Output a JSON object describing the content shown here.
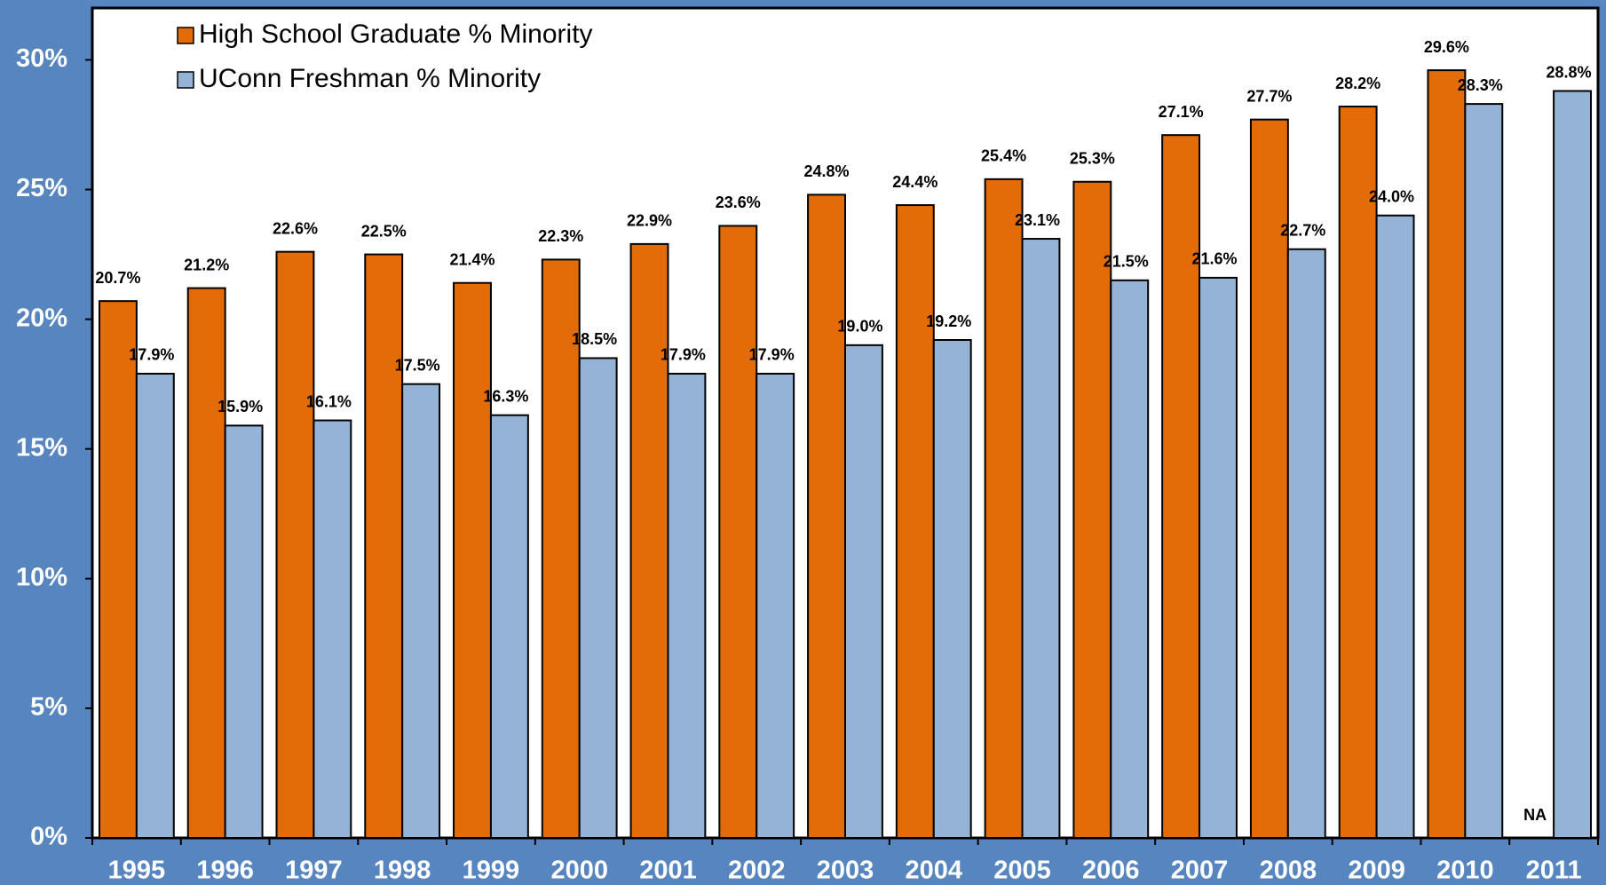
{
  "chart_data": {
    "type": "bar",
    "categories": [
      "1995",
      "1996",
      "1997",
      "1998",
      "1999",
      "2000",
      "2001",
      "2002",
      "2003",
      "2004",
      "2005",
      "2006",
      "2007",
      "2008",
      "2009",
      "2010",
      "2011"
    ],
    "series": [
      {
        "name": "High School Graduate % Minority",
        "color": "#e36c09",
        "values": [
          20.7,
          21.2,
          22.6,
          22.5,
          21.4,
          22.3,
          22.9,
          23.6,
          24.8,
          24.4,
          25.4,
          25.3,
          27.1,
          27.7,
          28.2,
          29.6,
          null
        ],
        "value_labels": [
          "20.7%",
          "21.2%",
          "22.6%",
          "22.5%",
          "21.4%",
          "22.3%",
          "22.9%",
          "23.6%",
          "24.8%",
          "24.4%",
          "25.4%",
          "25.3%",
          "27.1%",
          "27.7%",
          "28.2%",
          "29.6%",
          "NA"
        ]
      },
      {
        "name": "UConn Freshman % Minority",
        "color": "#95b3d7",
        "values": [
          17.9,
          15.9,
          16.1,
          17.5,
          16.3,
          18.5,
          17.9,
          17.9,
          19.0,
          19.2,
          23.1,
          21.5,
          21.6,
          22.7,
          24.0,
          28.3,
          28.8
        ],
        "value_labels": [
          "17.9%",
          "15.9%",
          "16.1%",
          "17.5%",
          "16.3%",
          "18.5%",
          "17.9%",
          "17.9%",
          "19.0%",
          "19.2%",
          "23.1%",
          "21.5%",
          "21.6%",
          "22.7%",
          "24.0%",
          "28.3%",
          "28.8%"
        ]
      }
    ],
    "ylim": [
      0,
      32
    ],
    "yticks": [
      {
        "value": 0,
        "label": "0%"
      },
      {
        "value": 5,
        "label": "5%"
      },
      {
        "value": 10,
        "label": "10%"
      },
      {
        "value": 15,
        "label": "15%"
      },
      {
        "value": 20,
        "label": "20%"
      },
      {
        "value": 25,
        "label": "25%"
      },
      {
        "value": 30,
        "label": "30%"
      }
    ],
    "legend": "upper left",
    "grid": false
  }
}
